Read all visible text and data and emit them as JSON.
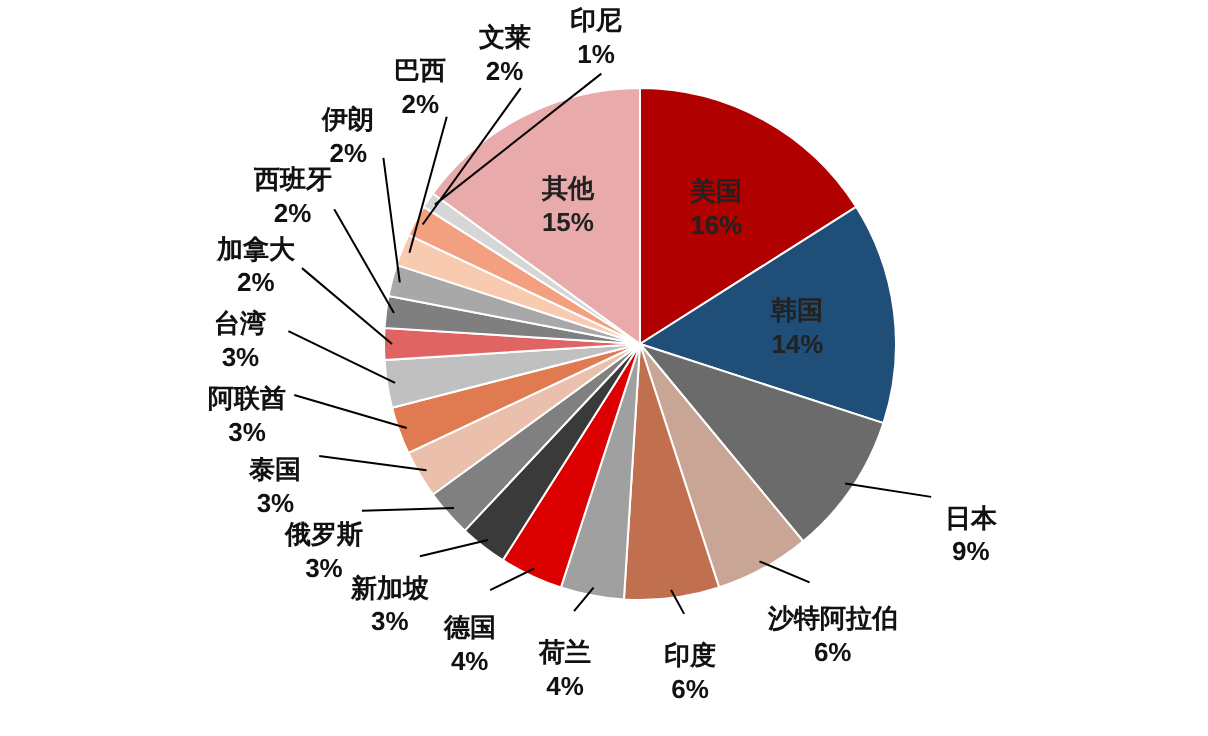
{
  "chart_data": {
    "type": "pie",
    "categories": [
      "美国",
      "韩国",
      "日本",
      "沙特阿拉伯",
      "印度",
      "荷兰",
      "德国",
      "新加坡",
      "俄罗斯",
      "泰国",
      "阿联酋",
      "台湾",
      "加拿大",
      "西班牙",
      "伊朗",
      "巴西",
      "文莱",
      "印尼",
      "其他"
    ],
    "values": [
      16,
      14,
      9,
      6,
      6,
      4,
      4,
      3,
      3,
      3,
      3,
      3,
      2,
      2,
      2,
      2,
      2,
      1,
      15
    ],
    "value_labels": [
      "16%",
      "14%",
      "9%",
      "6%",
      "6%",
      "4%",
      "4%",
      "3%",
      "3%",
      "3%",
      "3%",
      "3%",
      "2%",
      "2%",
      "2%",
      "2%",
      "2%",
      "1%",
      "15%"
    ],
    "colors": [
      "#b00000",
      "#1f4e79",
      "#6b6b6b",
      "#c9a595",
      "#c0704f",
      "#a0a0a0",
      "#dd0000",
      "#3a3a3a",
      "#808080",
      "#eac0ad",
      "#e07a50",
      "#c0c0c0",
      "#e06464",
      "#7f7f7f",
      "#a8a8a8",
      "#f8cbb0",
      "#f2a080",
      "#d6d6d6",
      "#e8aaaa"
    ]
  }
}
